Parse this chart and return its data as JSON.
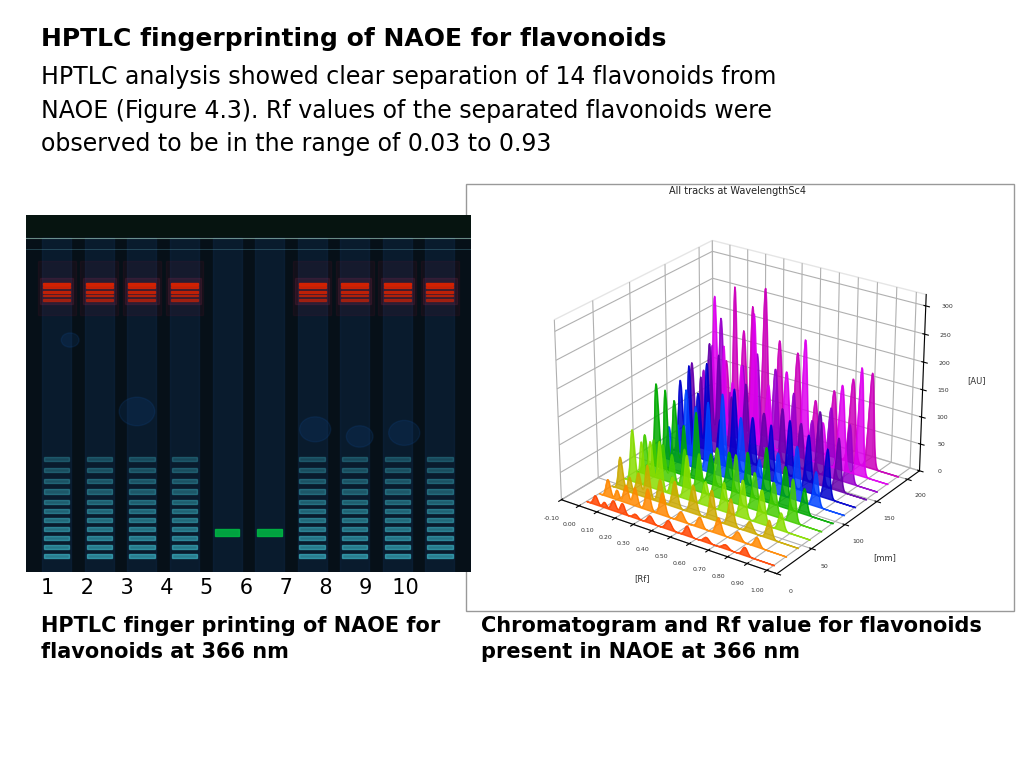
{
  "title_bold": "HPTLC fingerprinting of NAOE for flavonoids",
  "title_body": "HPTLC analysis showed clear separation of 14 flavonoids from\nNAOE (Figure 4.3). Rf values of the separated flavonoids were\nobserved to be in the range of 0.03 to 0.93",
  "caption_left_line1": "1    2    3    4    5    6    7    8    9   10",
  "caption_left_line2": "HPTLC finger printing of NAOE for\nflavonoids at 366 nm",
  "caption_right": "Chromatogram and Rf value for flavonoids\npresent in NAOE at 366 nm",
  "bg_color": "#ffffff",
  "text_color": "#000000",
  "title_fontsize": 18,
  "body_fontsize": 17,
  "caption_fontsize": 15,
  "plot3d_title": "All tracks at WavelengthSc4",
  "track_colors": [
    "#cc00bb",
    "#dd00ee",
    "#9900cc",
    "#6600aa",
    "#0000cc",
    "#0044ff",
    "#00aa00",
    "#44cc00",
    "#88dd00",
    "#ccaa00",
    "#ff8800",
    "#ff4400"
  ],
  "n_tracks": 12
}
